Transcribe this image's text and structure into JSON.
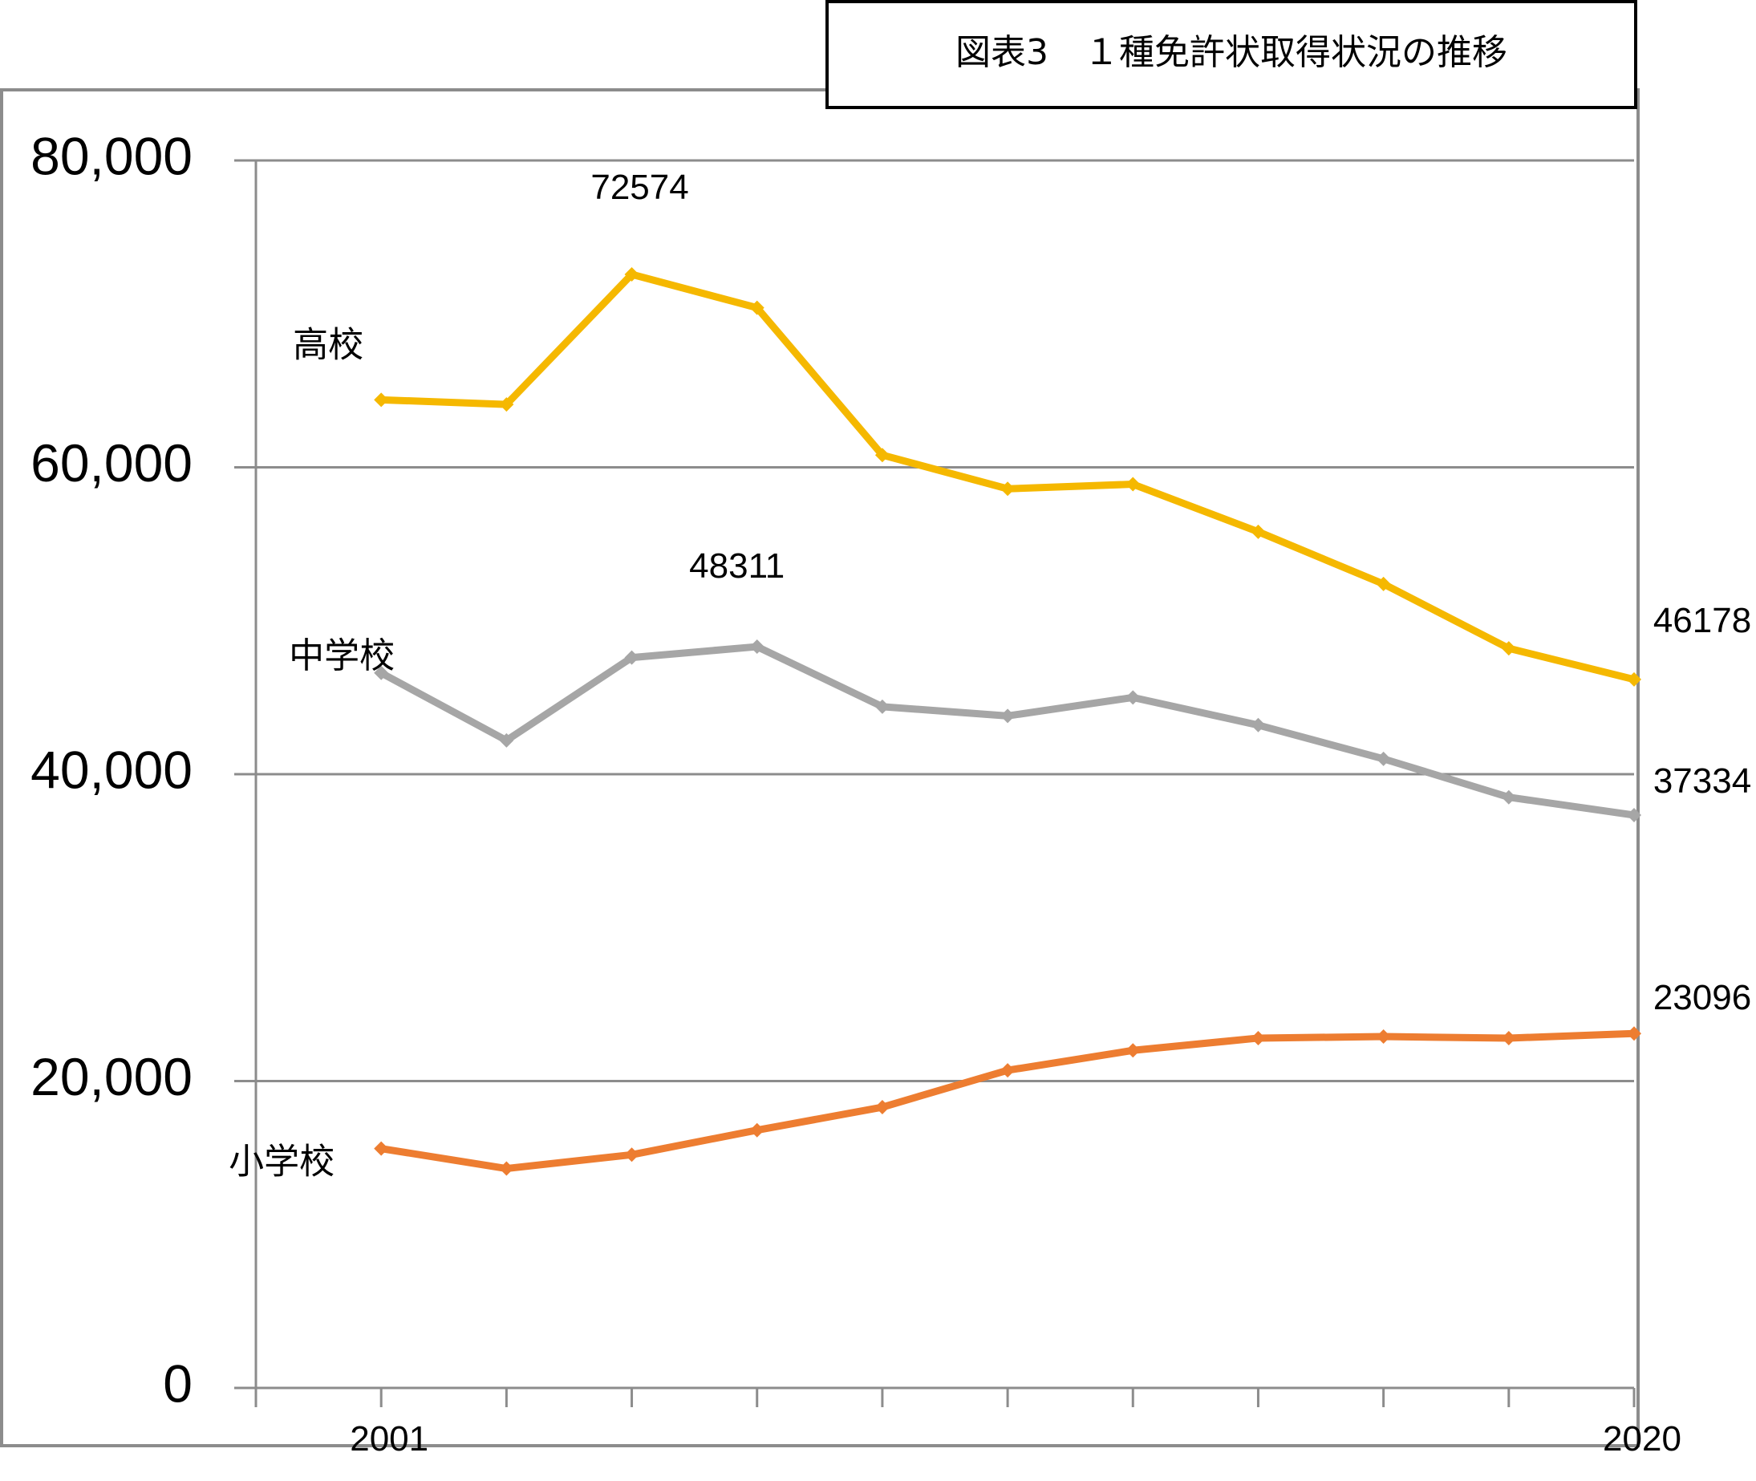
{
  "chart_data": {
    "type": "line",
    "title": "図表3　１種免許状取得状況の推移",
    "xlabel": "",
    "ylabel": "",
    "ylim": [
      0,
      80000
    ],
    "yticks": [
      "0",
      "20,000",
      "40,000",
      "60,000",
      "80,000"
    ],
    "x_tick_labels": [
      "2001",
      "2020"
    ],
    "grid": true,
    "series": [
      {
        "name": "高校",
        "color": "#f5b800",
        "values": [
          64400,
          64100,
          72574,
          70400,
          60800,
          58600,
          58900,
          55800,
          52400,
          48200,
          46178
        ],
        "callouts": [
          "72574",
          "46178"
        ]
      },
      {
        "name": "中学校",
        "color": "#a6a6a6",
        "values": [
          46600,
          42200,
          47600,
          48311,
          44400,
          43800,
          45000,
          43200,
          41000,
          38500,
          37334
        ],
        "callouts": [
          "48311",
          "37334"
        ]
      },
      {
        "name": "小学校",
        "color": "#ed7d31",
        "values": [
          15600,
          14300,
          15200,
          16800,
          18300,
          20700,
          22000,
          22800,
          22900,
          22800,
          23096
        ],
        "callouts": [
          "23096"
        ]
      }
    ]
  }
}
